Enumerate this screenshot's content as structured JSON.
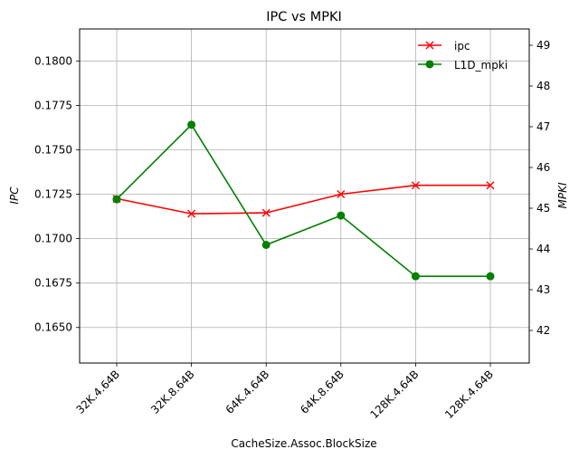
{
  "chart_data": {
    "type": "line",
    "title": "IPC vs MPKI",
    "xlabel": "CacheSize.Assoc.BlockSize",
    "ylabel_left": "IPC",
    "ylabel_right": "MPKI",
    "categories": [
      "32K.4.64B",
      "32K.8.64B",
      "64K.4.64B",
      "64K.8.64B",
      "128K.4.64B",
      "128K.4.64B"
    ],
    "ylim_left": [
      0.163,
      0.1818
    ],
    "ylim_right": [
      41.2,
      49.4
    ],
    "yticks_left": [
      "0.1650",
      "0.1675",
      "0.1700",
      "0.1725",
      "0.1750",
      "0.1775",
      "0.1800"
    ],
    "yticks_right": [
      "42",
      "43",
      "44",
      "45",
      "46",
      "47",
      "48",
      "49"
    ],
    "series": [
      {
        "name": "ipc",
        "axis": "left",
        "color": "#ff0000",
        "marker": "x",
        "values": [
          0.17225,
          0.1714,
          0.17145,
          0.1725,
          0.173,
          0.173
        ]
      },
      {
        "name": "L1D_mpki",
        "axis": "right",
        "color": "#008000",
        "marker": "o",
        "values": [
          45.22,
          47.05,
          44.1,
          44.82,
          43.33,
          43.33
        ]
      }
    ],
    "grid": true,
    "legend_position": "top-right"
  }
}
